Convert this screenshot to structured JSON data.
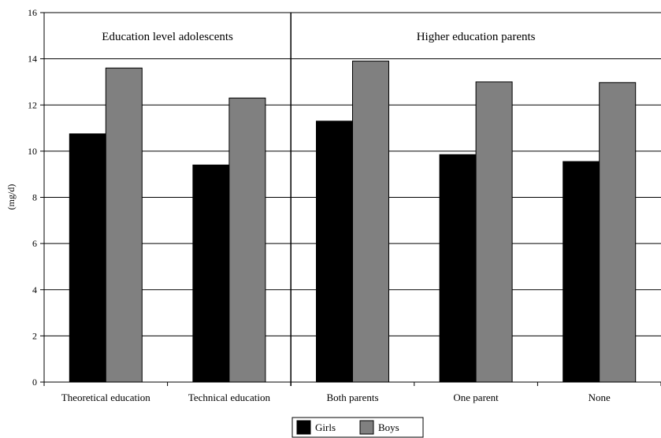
{
  "chart_data": {
    "type": "bar",
    "ylabel": "(mg/d)",
    "ylim": [
      0,
      16
    ],
    "yticks": [
      0,
      2,
      4,
      6,
      8,
      10,
      12,
      14,
      16
    ],
    "grid": "horizontal",
    "legend_position": "bottom-center",
    "panels": [
      {
        "title": "Education level adolescents",
        "categories": [
          "Theoretical education",
          "Technical education"
        ]
      },
      {
        "title": "Higher education parents",
        "categories": [
          "Both parents",
          "One parent",
          "None"
        ]
      }
    ],
    "categories": [
      "Theoretical education",
      "Technical education",
      "Both parents",
      "One parent",
      "None"
    ],
    "series": [
      {
        "name": "Girls",
        "color": "#000000",
        "values": [
          10.75,
          9.4,
          11.3,
          9.85,
          9.55
        ]
      },
      {
        "name": "Boys",
        "color": "#808080",
        "values": [
          13.6,
          12.3,
          13.9,
          13.0,
          12.97
        ]
      }
    ]
  }
}
